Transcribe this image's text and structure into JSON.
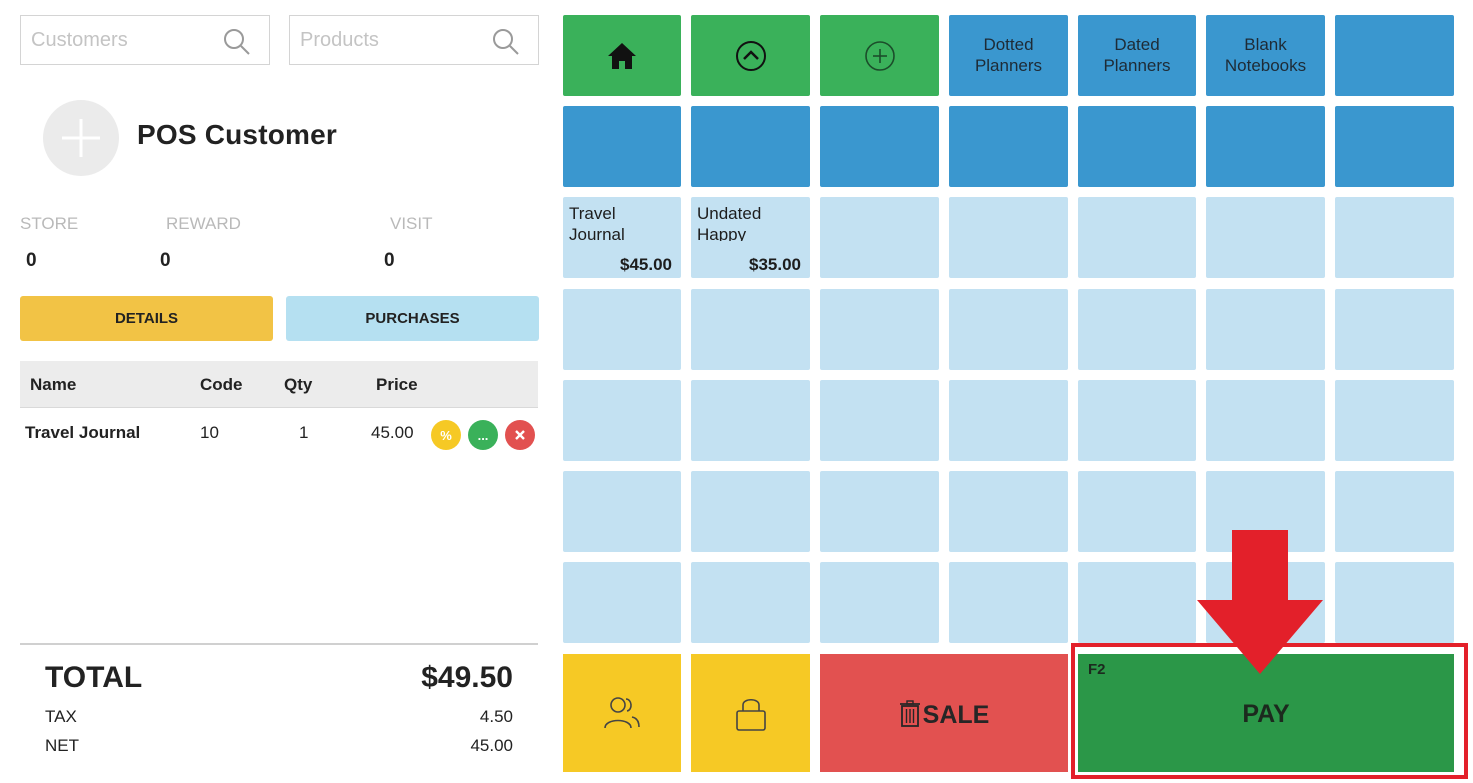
{
  "search": {
    "customers_placeholder": "Customers",
    "products_placeholder": "Products"
  },
  "customer": {
    "name": "POS Customer",
    "stats": [
      {
        "label": "STORE",
        "value": "0"
      },
      {
        "label": "REWARD",
        "value": "0"
      },
      {
        "label": "VISIT",
        "value": "0"
      }
    ]
  },
  "tabs": {
    "details": "DETAILS",
    "purchases": "PURCHASES"
  },
  "cart": {
    "headers": {
      "name": "Name",
      "code": "Code",
      "qty": "Qty",
      "price": "Price"
    },
    "items": [
      {
        "name": "Travel Journal",
        "code": "10",
        "qty": "1",
        "price": "45.00",
        "discount_icon": "%",
        "more_icon": "..."
      }
    ]
  },
  "totals": {
    "total_label": "TOTAL",
    "total_value": "$49.50",
    "tax_label": "TAX",
    "tax_value": "4.50",
    "net_label": "NET",
    "net_value": "45.00"
  },
  "categories": [
    {
      "label": "Dotted\nPlanners"
    },
    {
      "label": "Dated\nPlanners"
    },
    {
      "label": "Blank\nNotebooks"
    }
  ],
  "products": [
    {
      "name": "Travel Journal",
      "price": "$45.00"
    },
    {
      "name": "Undated Happy Planner (Mom",
      "price": "$35.00"
    }
  ],
  "actions": {
    "sale_label": "SALE",
    "pay_label": "PAY",
    "pay_shortcut": "F2"
  },
  "icons": {
    "home": "home-icon",
    "up": "chevron-up-circle-icon",
    "add": "plus-circle-icon",
    "customers": "users-icon",
    "lock": "lock-icon",
    "trash": "trash-icon",
    "search": "search-icon"
  },
  "colors": {
    "nav_green": "#3ab15a",
    "category_blue": "#3a97cf",
    "empty_tile": "#c3e1f2",
    "yellow": "#f6c925",
    "sale_red": "#e25150",
    "pay_green": "#2b9748",
    "annotation_red": "#e3202a"
  }
}
